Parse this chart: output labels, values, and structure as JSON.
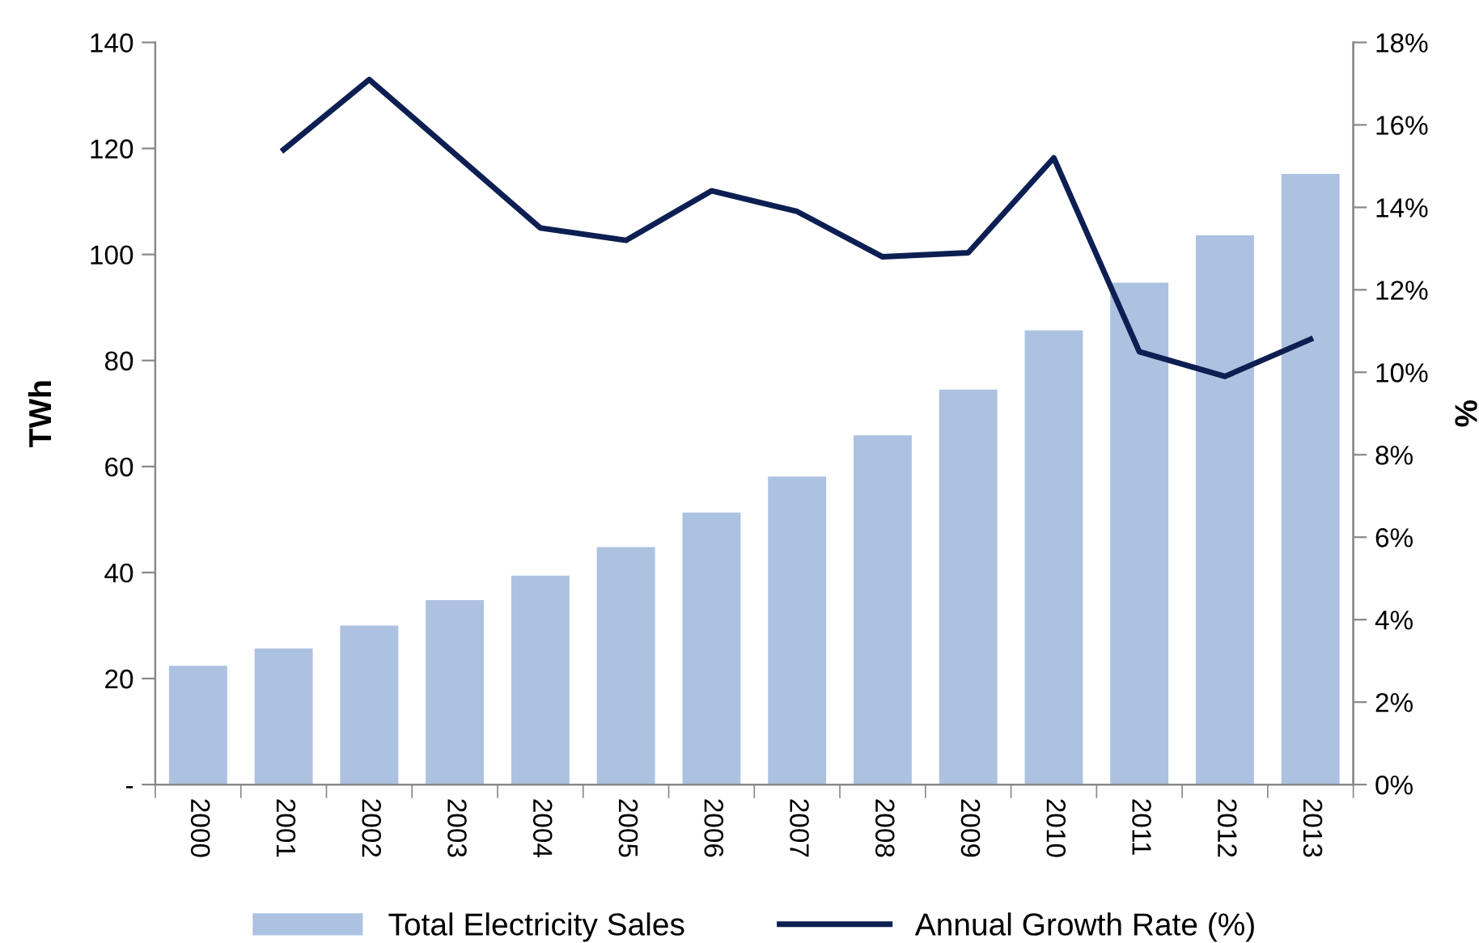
{
  "chart_data": {
    "type": "bar",
    "categories": [
      "2000",
      "2001",
      "2002",
      "2003",
      "2004",
      "2005",
      "2006",
      "2007",
      "2008",
      "2009",
      "2010",
      "2011",
      "2012",
      "2013"
    ],
    "series": [
      {
        "name": "Total Electricity Sales",
        "type": "bar",
        "color": "#adc2e1",
        "values": [
          22.4,
          25.7,
          30.0,
          34.8,
          39.4,
          44.8,
          51.3,
          58.1,
          65.9,
          74.5,
          85.7,
          94.7,
          103.6,
          115.2
        ]
      },
      {
        "name": "Annual Growth Rate (%)",
        "type": "line",
        "axis": "y2",
        "color": "#0d1f52",
        "values": [
          null,
          15.4,
          17.1,
          15.3,
          13.5,
          13.2,
          14.4,
          13.9,
          12.8,
          12.9,
          15.2,
          10.5,
          9.9,
          10.8
        ]
      }
    ],
    "ylabel": "TWh",
    "y2label": "%",
    "ylim": [
      0,
      140
    ],
    "yticks": [
      {
        "value": 0,
        "label": "-"
      },
      20,
      40,
      60,
      80,
      100,
      120,
      140
    ],
    "y2lim": [
      0,
      18
    ],
    "y2ticks": [
      {
        "value": 0,
        "label": "0%"
      },
      {
        "value": 2,
        "label": "2%"
      },
      {
        "value": 4,
        "label": "4%"
      },
      {
        "value": 6,
        "label": "6%"
      },
      {
        "value": 8,
        "label": "8%"
      },
      {
        "value": 10,
        "label": "10%"
      },
      {
        "value": 12,
        "label": "12%"
      },
      {
        "value": 14,
        "label": "14%"
      },
      {
        "value": 16,
        "label": "16%"
      },
      {
        "value": 18,
        "label": "18%"
      }
    ],
    "grid": false,
    "legend": "bottom",
    "marker": "none",
    "line_style": "solid"
  }
}
